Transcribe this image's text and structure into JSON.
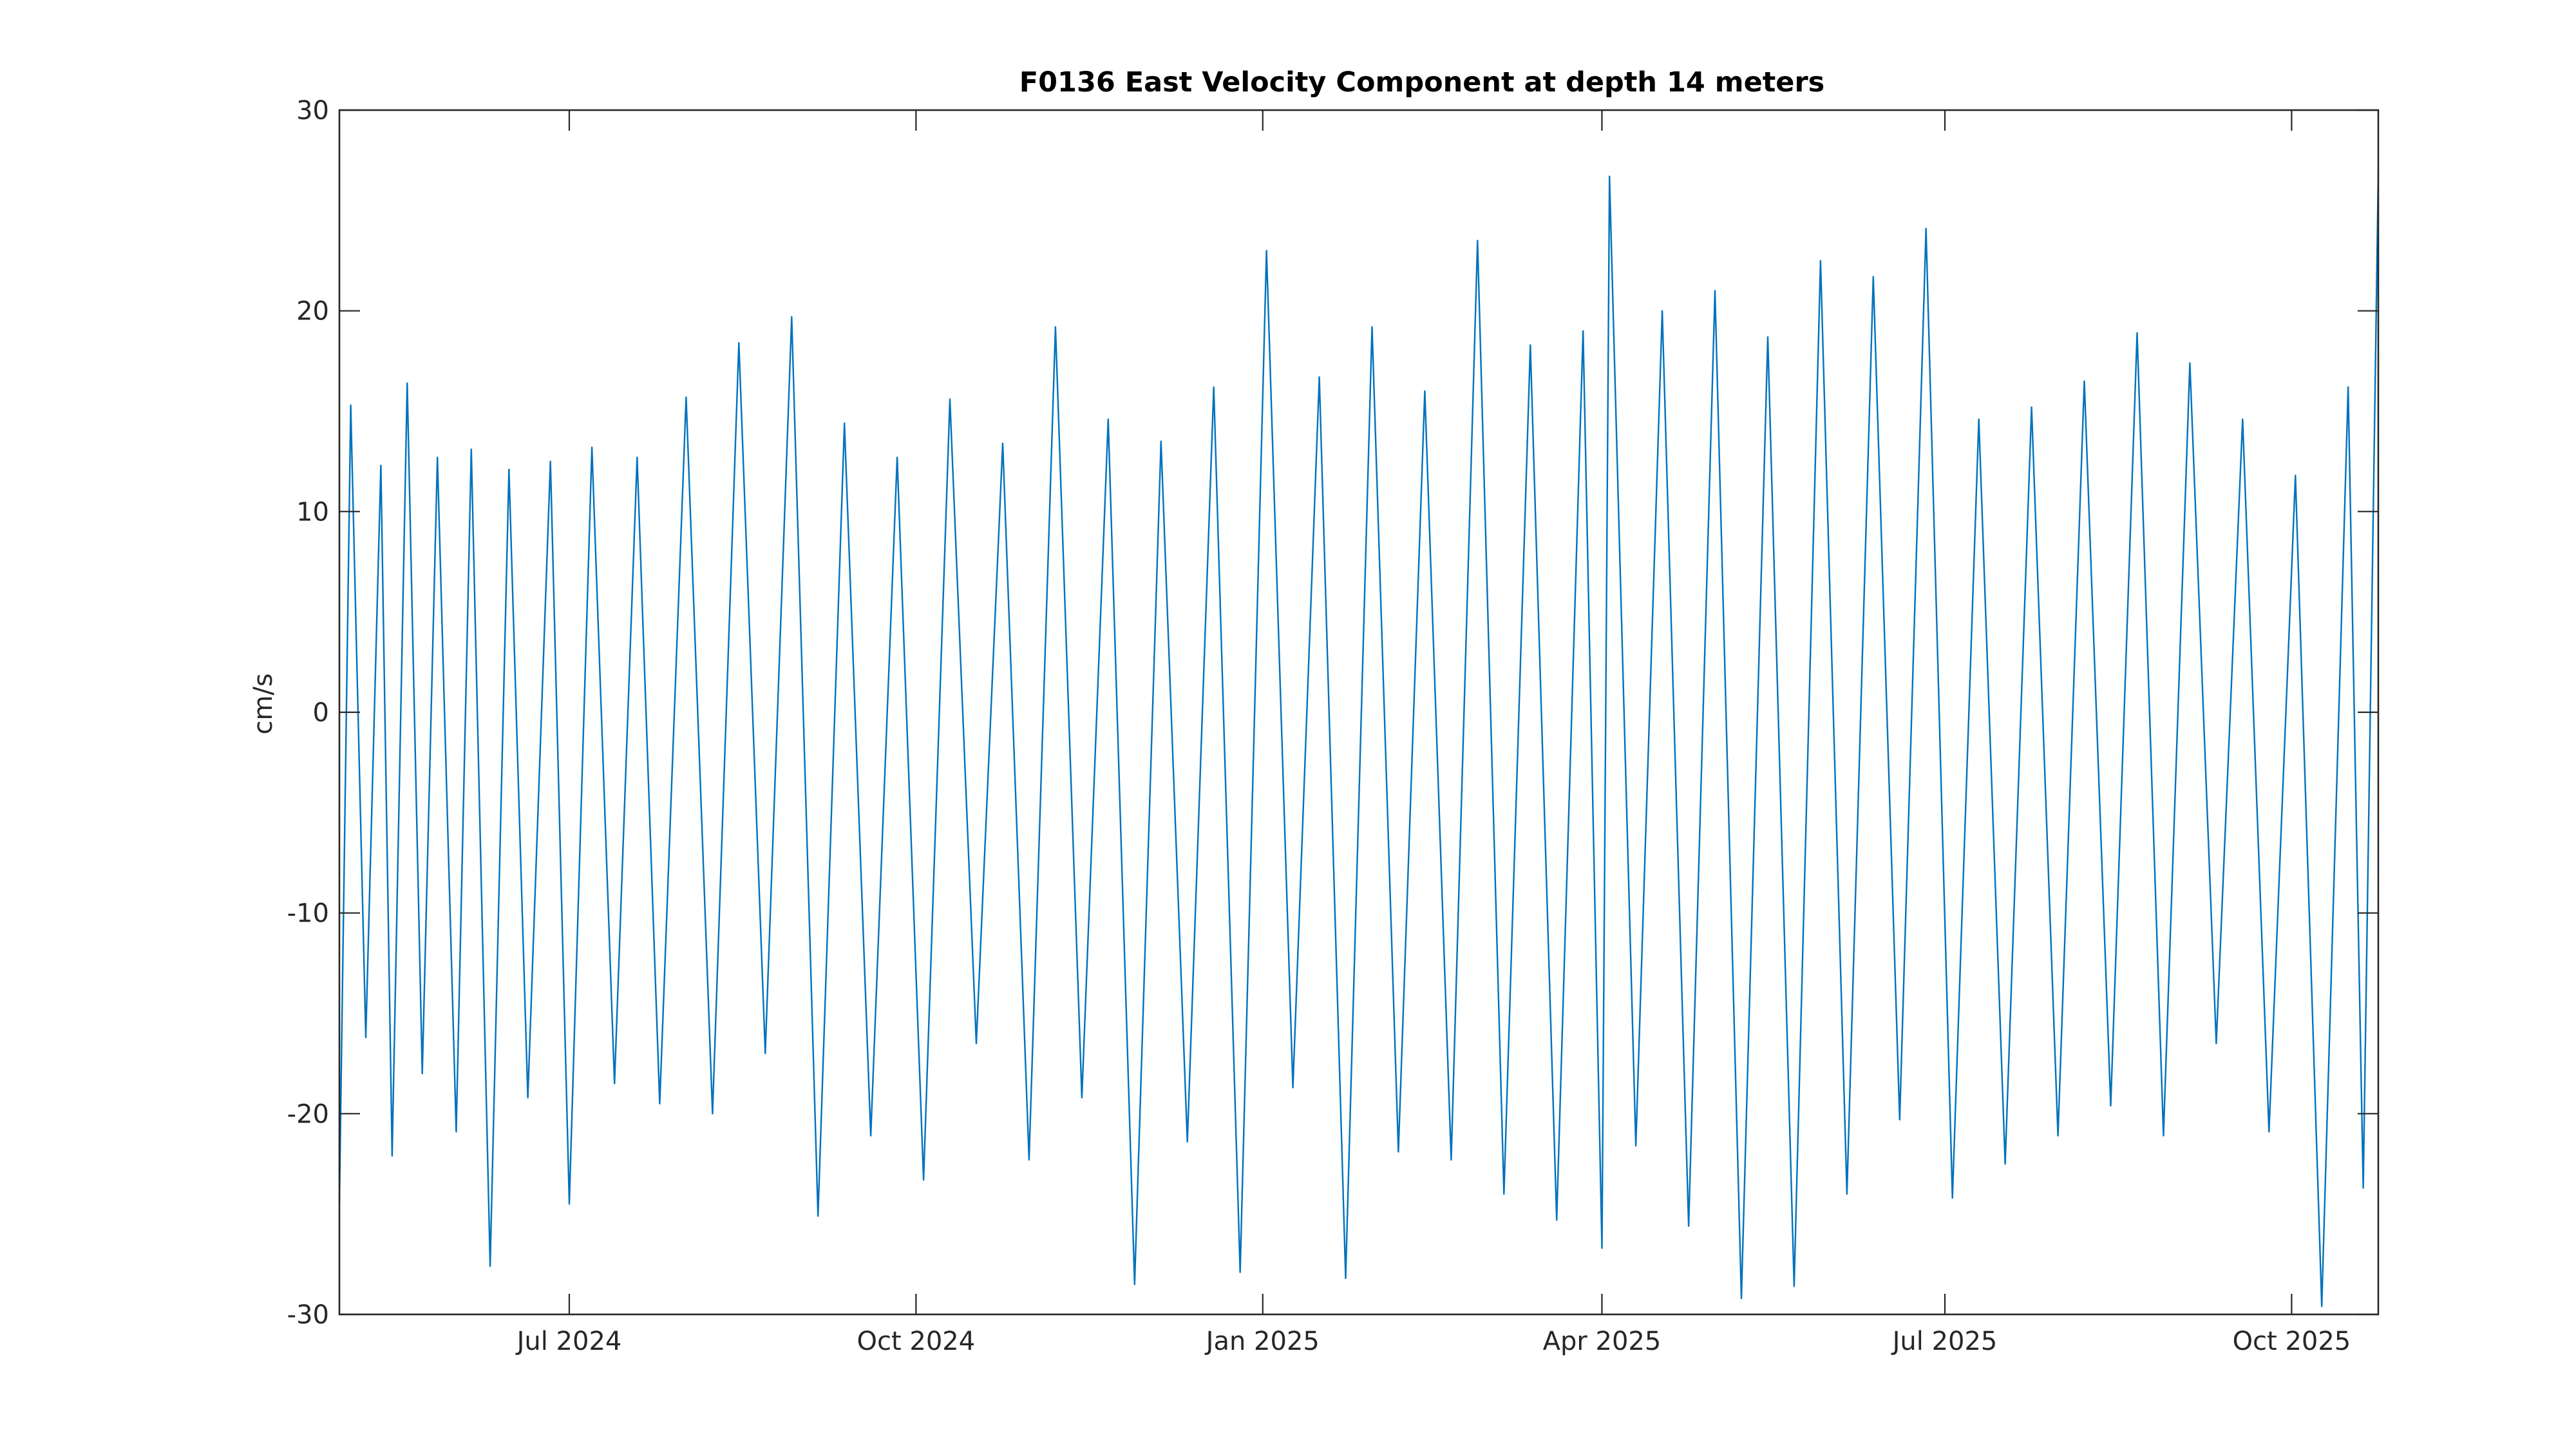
{
  "chart_data": {
    "type": "line",
    "title": "F0136 East Velocity Component at depth 14 meters",
    "xlabel": "",
    "ylabel": "cm/s",
    "x_range": [
      "2024-05-01",
      "2025-10-24"
    ],
    "ylim": [
      -30,
      30
    ],
    "y_ticks": [
      -30,
      -20,
      -10,
      0,
      10,
      20,
      30
    ],
    "y_tick_labels": [
      "-30",
      "-20",
      "-10",
      "0",
      "10",
      "20",
      "30"
    ],
    "x_ticks": [
      "2024-07-01",
      "2024-10-01",
      "2025-01-01",
      "2025-04-01",
      "2025-07-01",
      "2025-10-01"
    ],
    "x_tick_labels": [
      "Jul 2024",
      "Oct 2024",
      "Jan 2025",
      "Apr 2025",
      "Jul 2025",
      "Oct 2025"
    ],
    "grid": false,
    "legend": "none",
    "line_color": "#0072BD",
    "series": [
      {
        "x": [
          "2024-05-01",
          "2024-05-04",
          "2024-05-08",
          "2024-05-12",
          "2024-05-15",
          "2024-05-19",
          "2024-05-23",
          "2024-05-27",
          "2024-06-01",
          "2024-06-05",
          "2024-06-10",
          "2024-06-15",
          "2024-06-20",
          "2024-06-26",
          "2024-07-01",
          "2024-07-07",
          "2024-07-13",
          "2024-07-19",
          "2024-07-25",
          "2024-08-01",
          "2024-08-08",
          "2024-08-15",
          "2024-08-22",
          "2024-08-29",
          "2024-09-05",
          "2024-09-12",
          "2024-09-19",
          "2024-09-26",
          "2024-10-03",
          "2024-10-10",
          "2024-10-17",
          "2024-10-24",
          "2024-10-31",
          "2024-11-07",
          "2024-11-14",
          "2024-11-21",
          "2024-11-28",
          "2024-12-05",
          "2024-12-12",
          "2024-12-19",
          "2024-12-26",
          "2025-01-02",
          "2025-01-09",
          "2025-01-16",
          "2025-01-23",
          "2025-01-30",
          "2025-02-06",
          "2025-02-13",
          "2025-02-20",
          "2025-02-27",
          "2025-03-06",
          "2025-03-13",
          "2025-03-20",
          "2025-03-27",
          "2025-04-01",
          "2025-04-03",
          "2025-04-10",
          "2025-04-17",
          "2025-04-24",
          "2025-05-01",
          "2025-05-08",
          "2025-05-15",
          "2025-05-22",
          "2025-05-29",
          "2025-06-05",
          "2025-06-12",
          "2025-06-19",
          "2025-06-26",
          "2025-07-03",
          "2025-07-10",
          "2025-07-17",
          "2025-07-24",
          "2025-07-31",
          "2025-08-07",
          "2025-08-14",
          "2025-08-21",
          "2025-08-28",
          "2025-09-04",
          "2025-09-11",
          "2025-09-18",
          "2025-09-25",
          "2025-10-02",
          "2025-10-09",
          "2025-10-16",
          "2025-10-20",
          "2025-10-24"
        ],
        "y": [
          -24.5,
          15.3,
          -16.2,
          12.3,
          -22.1,
          16.4,
          -18.0,
          12.7,
          -20.9,
          13.1,
          -27.6,
          12.1,
          -19.2,
          12.5,
          -24.5,
          13.2,
          -18.5,
          12.7,
          -19.5,
          15.7,
          -20.0,
          18.4,
          -17.0,
          19.7,
          -25.1,
          14.4,
          -21.1,
          12.7,
          -23.3,
          15.6,
          -16.5,
          13.4,
          -22.3,
          19.2,
          -19.2,
          14.6,
          -28.5,
          13.5,
          -21.4,
          16.2,
          -27.9,
          23.0,
          -18.7,
          16.7,
          -28.2,
          19.2,
          -21.9,
          16.0,
          -22.3,
          23.5,
          -24.0,
          18.3,
          -25.3,
          19.0,
          -26.7,
          26.7,
          -21.6,
          20.0,
          -25.6,
          21.0,
          -29.2,
          18.7,
          -28.6,
          22.5,
          -24.0,
          21.7,
          -20.3,
          24.1,
          -24.2,
          14.6,
          -22.5,
          15.2,
          -21.1,
          16.5,
          -19.6,
          18.9,
          -21.1,
          17.4,
          -16.5,
          14.6,
          -20.9,
          11.8,
          -29.6,
          16.2,
          -23.7,
          26.9
        ]
      }
    ]
  }
}
